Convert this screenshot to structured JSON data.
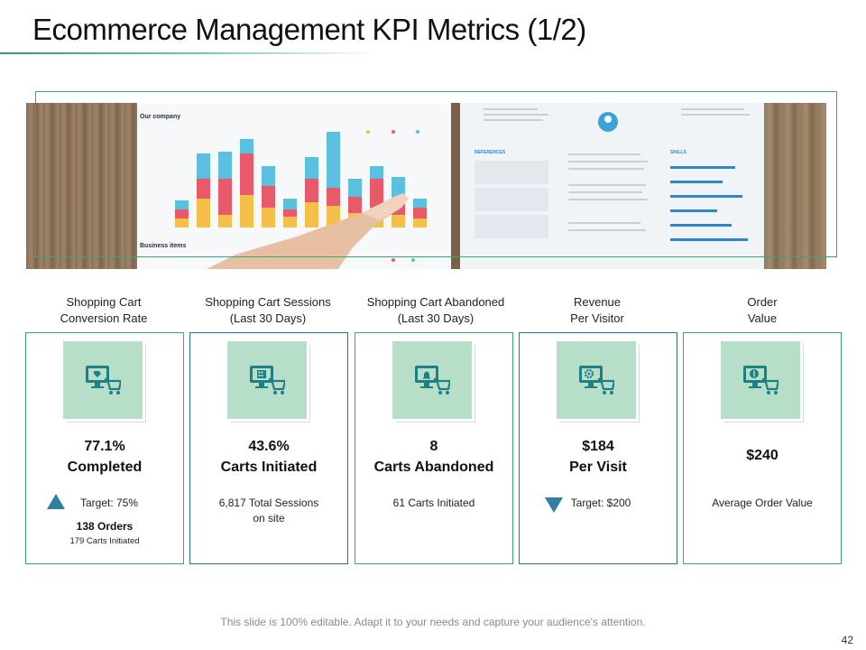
{
  "slide": {
    "title": "Ecommerce Management KPI Metrics (1/2)",
    "footer": "This slide is 100% editable. Adapt it to your needs and capture your audience's attention.",
    "page_number": "42"
  },
  "hero_image": {
    "left_paper": {
      "heading": "Our company",
      "footer_heading": "Business items",
      "bar_colors": [
        "#f5c04a",
        "#e8596a",
        "#5bc0e0"
      ]
    },
    "right_paper": {
      "section_references": "REFERENCES",
      "section_skills": "SKILLS"
    }
  },
  "kpis": [
    {
      "header": [
        "Shopping Cart",
        "Conversion Rate"
      ],
      "value": [
        "77.1%",
        "Completed"
      ],
      "detail": "Target: 75%",
      "trend": "up",
      "orders": "138 Orders",
      "orders_note": "179 Carts Initiated",
      "border": "green",
      "icon": "monitor-cart-tag-icon"
    },
    {
      "header": [
        "Shopping Cart Sessions",
        "(Last 30 Days)"
      ],
      "value": [
        "43.6%",
        "Carts Initiated"
      ],
      "detail": [
        "6,817 Total Sessions",
        "on site"
      ],
      "border": "blue",
      "icon": "monitor-cart-calculator-icon"
    },
    {
      "header": [
        "Shopping Cart Abandoned",
        "(Last 30 Days)"
      ],
      "value": [
        "8",
        "Carts Abandoned"
      ],
      "detail": "61 Carts Initiated",
      "border": "green",
      "icon": "monitor-cart-bell-icon"
    },
    {
      "header": [
        "Revenue",
        "Per Visitor"
      ],
      "value": [
        "$184",
        "Per Visit"
      ],
      "detail": "Target: $200",
      "trend": "down",
      "border": "blue",
      "icon": "monitor-cart-gear-icon"
    },
    {
      "header": [
        "Order",
        "Value"
      ],
      "value": [
        "$240"
      ],
      "detail": "Average Order Value",
      "border": "green",
      "icon": "monitor-cart-dollar-icon"
    }
  ],
  "colors": {
    "accent_green": "#3aa674",
    "accent_blue": "#2b6fa8",
    "icon_tile": "#b7dfc8",
    "icon_teal": "#1f7f86",
    "trend_marker": "#2e7fa6"
  }
}
